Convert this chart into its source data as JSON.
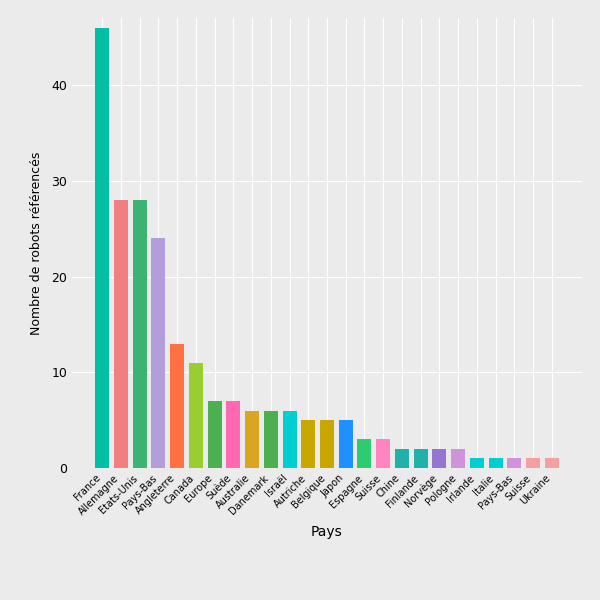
{
  "categories": [
    "France",
    "Allemagne",
    "Etats-Unis",
    "Pays-Bas",
    "Angleterre",
    "Canada",
    "Europe",
    "Suède",
    "Australie",
    "Danemark",
    "Israël",
    "Autriche",
    "Belgique",
    "Japon",
    "Espagne",
    "Suisse",
    "Chine",
    "Finlande",
    "Norvège",
    "Pologne",
    "Irlande",
    "Italie",
    "Pays-Bas",
    "Suisse",
    "Ukraine"
  ],
  "values": [
    46,
    28,
    28,
    24,
    13,
    11,
    7,
    7,
    6,
    6,
    6,
    5,
    5,
    5,
    3,
    3,
    2,
    2,
    2,
    2,
    1,
    1,
    1,
    1,
    1
  ],
  "colors": [
    "#00BFA5",
    "#F08080",
    "#3CB371",
    "#B39DDB",
    "#FF7043",
    "#9ACD32",
    "#4CAF50",
    "#FF69B4",
    "#DAA520",
    "#4CAF50",
    "#00CED1",
    "#C8A800",
    "#C8A800",
    "#1E90FF",
    "#2ECC71",
    "#FF85C0",
    "#20B2AA",
    "#20B2AA",
    "#9575CD",
    "#CE93D8",
    "#00CED1",
    "#00CED1",
    "#CE93D8",
    "#F4A0A0",
    "#F4A0A0"
  ],
  "xlabel": "Pays",
  "ylabel": "Nombre de robots référencés",
  "bg_color": "#EBEBEB",
  "grid_color": "#FFFFFF",
  "bar_width": 0.75,
  "ylim": [
    0,
    47
  ],
  "yticks": [
    0,
    10,
    20,
    30,
    40
  ]
}
